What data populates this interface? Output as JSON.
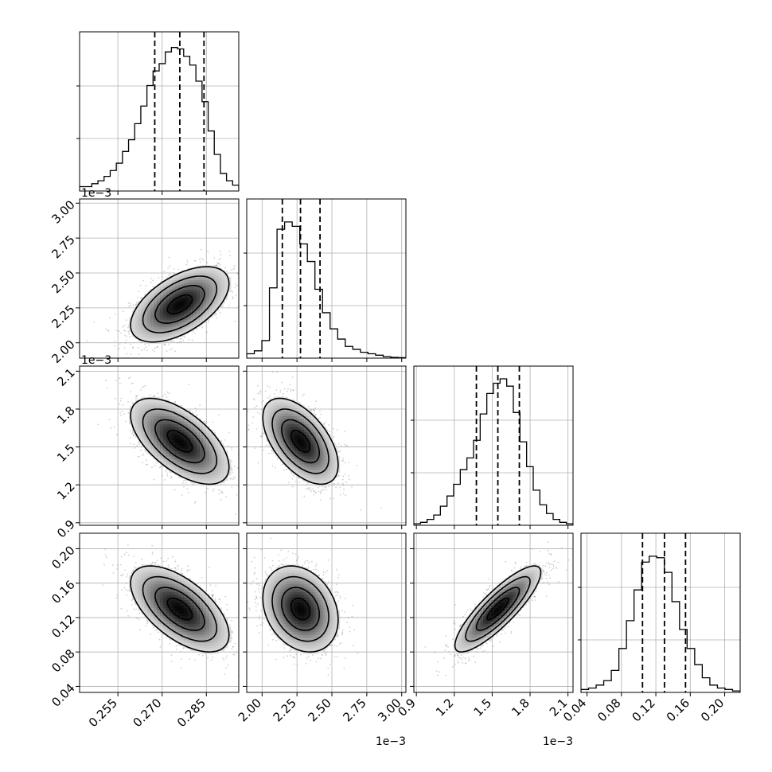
{
  "chart_data": {
    "type": "corner",
    "n_params": 4,
    "grid": true,
    "params": [
      {
        "label": "",
        "range": [
          0.242,
          0.296
        ],
        "offset_text": "",
        "ticks": [
          0.255,
          0.27,
          0.285
        ],
        "tick_labels": [
          "0.255",
          "0.270",
          "0.285"
        ],
        "quantiles": [
          0.2675,
          0.276,
          0.2842
        ],
        "hist": [
          0.03,
          0.03,
          0.05,
          0.07,
          0.1,
          0.14,
          0.19,
          0.27,
          0.35,
          0.46,
          0.58,
          0.72,
          0.82,
          0.87,
          0.95,
          0.98,
          0.97,
          0.92,
          0.86,
          0.75,
          0.61,
          0.41,
          0.25,
          0.12,
          0.07,
          0.04
        ]
      },
      {
        "label": "",
        "range": [
          1.89,
          3.03
        ],
        "offset_text": "1e−3",
        "ticks": [
          2.0,
          2.25,
          2.5,
          2.75,
          3.0
        ],
        "tick_labels": [
          "2.00",
          "2.25",
          "2.50",
          "2.75",
          "3.00"
        ],
        "quantiles": [
          2.145,
          2.275,
          2.415
        ],
        "hist": [
          0.03,
          0.05,
          0.12,
          0.48,
          0.88,
          0.93,
          0.9,
          0.78,
          0.66,
          0.47,
          0.31,
          0.2,
          0.13,
          0.08,
          0.06,
          0.04,
          0.03,
          0.02,
          0.01,
          0.005,
          0.003
        ]
      },
      {
        "label": "",
        "range": [
          0.88,
          2.14
        ],
        "offset_text": "1e−3",
        "ticks": [
          0.9,
          1.2,
          1.5,
          1.8,
          2.1
        ],
        "tick_labels": [
          "0.9",
          "1.2",
          "1.5",
          "1.8",
          "2.1"
        ],
        "quantiles": [
          1.375,
          1.545,
          1.715
        ],
        "hist": [
          0.01,
          0.02,
          0.04,
          0.07,
          0.13,
          0.2,
          0.28,
          0.38,
          0.46,
          0.58,
          0.76,
          0.9,
          0.97,
          1.0,
          0.95,
          0.77,
          0.57,
          0.4,
          0.24,
          0.14,
          0.08,
          0.04,
          0.02,
          0.01
        ]
      },
      {
        "label": "",
        "range": [
          0.033,
          0.218
        ],
        "offset_text": "",
        "ticks": [
          0.04,
          0.08,
          0.12,
          0.16,
          0.2
        ],
        "tick_labels": [
          "0.04",
          "0.08",
          "0.12",
          "0.16",
          "0.20"
        ],
        "quantiles": [
          0.1045,
          0.13,
          0.1545
        ],
        "hist": [
          0.02,
          0.03,
          0.05,
          0.08,
          0.15,
          0.3,
          0.49,
          0.7,
          0.89,
          0.93,
          0.92,
          0.82,
          0.62,
          0.43,
          0.3,
          0.19,
          0.1,
          0.05,
          0.03,
          0.02,
          0.01
        ]
      }
    ],
    "correlations": [
      [
        1.0,
        0.55,
        -0.6,
        -0.6
      ],
      [
        0.55,
        1.0,
        -0.55,
        -0.25
      ],
      [
        -0.6,
        -0.55,
        1.0,
        0.85
      ],
      [
        -0.6,
        -0.25,
        0.85,
        1.0
      ]
    ],
    "contour_levels_sigma": [
      0.5,
      1.0,
      1.5,
      2.0
    ]
  }
}
